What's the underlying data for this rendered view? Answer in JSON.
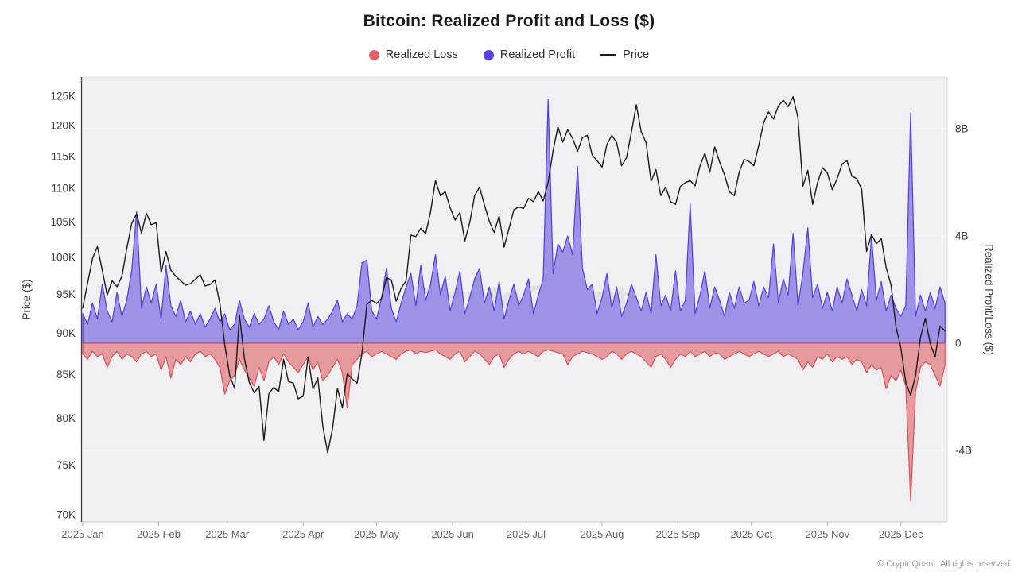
{
  "header": {
    "title": "Bitcoin: Realized Profit and Loss ($)"
  },
  "legend": [
    {
      "id": "realized-loss",
      "label": "Realized Loss",
      "marker": "circle",
      "color": "#e0606a"
    },
    {
      "id": "realized-profit",
      "label": "Realized Profit",
      "marker": "circle",
      "color": "#5742e8"
    },
    {
      "id": "price",
      "label": "Price",
      "marker": "line",
      "color": "#1f1f1f"
    }
  ],
  "watermark": "CryptoQuant",
  "footer": {
    "copyright": "© CryptoQuant. All rights reserved"
  },
  "chart_data": {
    "type": "area+line",
    "title": "Bitcoin: Realized Profit and Loss ($)",
    "plot_background": "#f0eff1",
    "gridline_color": "#fafafb",
    "grid_values_b": [
      8,
      4,
      0,
      -4
    ],
    "x_axis": {
      "year": 2025,
      "tick_labels": [
        "2025 Jan",
        "2025 Feb",
        "2025 Mar",
        "2025 Apr",
        "2025 May",
        "2025 Jun",
        "2025 Jul",
        "2025 Aug",
        "2025 Sep",
        "2025 Oct",
        "2025 Nov",
        "2025 Dec"
      ],
      "tick_days": [
        0,
        31,
        59,
        90,
        120,
        151,
        181,
        212,
        243,
        273,
        304,
        334
      ],
      "start_day": 0,
      "end_day": 352,
      "day_step": 2
    },
    "left_axis": {
      "label": "Price ($)",
      "scale": "log",
      "tick_labels": [
        "125K",
        "120K",
        "115K",
        "110K",
        "105K",
        "100K",
        "95K",
        "90K",
        "85K",
        "80K",
        "75K",
        "70K"
      ],
      "tick_values_k": [
        125,
        120,
        115,
        110,
        105,
        100,
        95,
        90,
        85,
        80,
        75,
        70
      ]
    },
    "right_axis": {
      "label": "Realized Profit/Loss ($)",
      "scale": "linear",
      "tick_labels": [
        "8B",
        "4B",
        "0",
        "-4B"
      ],
      "tick_values_b": [
        8,
        4,
        0,
        -4
      ]
    },
    "series": [
      {
        "name": "Realized Profit",
        "type": "area",
        "unit": "billion USD",
        "axis": "right",
        "color_fill": "#9c93e6",
        "color_line": "#4d3fdb",
        "values": [
          1.1,
          0.7,
          1.5,
          0.9,
          2.2,
          1.2,
          0.8,
          1.9,
          1.0,
          1.6,
          2.7,
          4.9,
          1.3,
          2.1,
          1.5,
          2.2,
          0.9,
          2.9,
          1.4,
          1.0,
          1.6,
          0.8,
          1.2,
          0.7,
          1.1,
          0.6,
          0.9,
          1.3,
          0.8,
          1.1,
          0.5,
          0.7,
          1.6,
          0.9,
          0.6,
          1.1,
          0.7,
          0.9,
          1.4,
          0.8,
          0.5,
          1.2,
          0.7,
          0.9,
          0.5,
          0.8,
          1.5,
          0.6,
          1.0,
          0.7,
          0.9,
          1.2,
          1.6,
          0.8,
          1.1,
          0.9,
          1.4,
          3.0,
          3.1,
          1.2,
          0.9,
          1.7,
          2.8,
          1.3,
          0.8,
          1.5,
          2.1,
          2.6,
          1.4,
          2.9,
          1.6,
          2.2,
          3.3,
          1.8,
          2.5,
          1.2,
          1.9,
          2.7,
          1.1,
          1.7,
          2.4,
          2.8,
          1.5,
          2.1,
          1.2,
          2.3,
          0.9,
          1.6,
          2.2,
          1.4,
          1.8,
          2.4,
          1.1,
          1.8,
          2.4,
          9.1,
          2.6,
          3.7,
          3.4,
          4.0,
          3.3,
          6.6,
          2.8,
          2.0,
          2.2,
          1.1,
          1.7,
          2.6,
          1.3,
          2.1,
          1.0,
          1.5,
          2.2,
          1.7,
          1.2,
          1.9,
          1.1,
          3.3,
          1.4,
          1.8,
          1.2,
          2.7,
          1.2,
          1.6,
          5.2,
          1.1,
          1.8,
          2.7,
          1.3,
          2.1,
          1.6,
          1.0,
          1.9,
          1.3,
          2.1,
          1.5,
          1.6,
          2.3,
          1.4,
          2.1,
          1.7,
          3.7,
          1.5,
          2.4,
          1.8,
          4.1,
          1.4,
          2.6,
          4.3,
          1.7,
          2.2,
          1.3,
          1.9,
          1.2,
          2.1,
          1.5,
          2.4,
          1.8,
          1.2,
          2.0,
          1.4,
          4.0,
          1.6,
          2.3,
          1.2,
          1.8,
          1.3,
          1.0,
          1.4,
          8.6,
          1.0,
          1.8,
          1.2,
          1.9,
          1.3,
          2.1,
          1.5
        ]
      },
      {
        "name": "Realized Loss",
        "type": "area",
        "unit": "billion USD",
        "axis": "right",
        "color_fill": "#e59a9e",
        "color_line": "#d95057",
        "values": [
          -0.4,
          -0.6,
          -0.3,
          -0.5,
          -0.4,
          -0.9,
          -0.5,
          -0.3,
          -0.6,
          -0.4,
          -0.5,
          -0.7,
          -0.4,
          -0.3,
          -0.5,
          -0.4,
          -1.0,
          -0.5,
          -1.3,
          -0.6,
          -0.8,
          -0.5,
          -0.7,
          -0.4,
          -0.3,
          -0.5,
          -0.4,
          -0.6,
          -0.9,
          -1.9,
          -1.4,
          -1.2,
          -0.6,
          -1.0,
          -1.3,
          -1.6,
          -0.9,
          -1.4,
          -0.7,
          -0.5,
          -0.8,
          -0.4,
          -0.7,
          -0.9,
          -1.1,
          -0.8,
          -0.5,
          -1.0,
          -0.7,
          -1.4,
          -1.2,
          -0.9,
          -0.6,
          -1.1,
          -2.4,
          -0.8,
          -0.6,
          -0.4,
          -0.3,
          -0.5,
          -0.4,
          -0.3,
          -0.4,
          -0.5,
          -0.6,
          -0.4,
          -0.3,
          -0.25,
          -0.4,
          -0.3,
          -0.35,
          -0.3,
          -0.25,
          -0.4,
          -0.5,
          -0.6,
          -0.4,
          -0.3,
          -0.7,
          -0.5,
          -0.3,
          -0.4,
          -0.6,
          -0.8,
          -0.5,
          -0.4,
          -0.9,
          -0.6,
          -0.4,
          -0.3,
          -0.4,
          -0.3,
          -0.4,
          -0.5,
          -0.3,
          -0.25,
          -0.3,
          -0.35,
          -0.4,
          -0.8,
          -0.5,
          -0.4,
          -0.3,
          -0.35,
          -0.4,
          -0.5,
          -0.6,
          -0.5,
          -0.3,
          -0.4,
          -0.6,
          -0.4,
          -0.3,
          -0.4,
          -0.5,
          -0.7,
          -0.9,
          -0.5,
          -0.4,
          -0.6,
          -0.9,
          -0.6,
          -0.4,
          -0.5,
          -0.3,
          -0.5,
          -0.4,
          -0.3,
          -0.5,
          -0.35,
          -0.4,
          -0.6,
          -0.5,
          -0.4,
          -0.3,
          -0.4,
          -0.5,
          -0.4,
          -0.3,
          -0.4,
          -0.5,
          -0.4,
          -0.3,
          -0.5,
          -0.4,
          -0.5,
          -0.6,
          -1.0,
          -0.7,
          -0.9,
          -0.5,
          -0.6,
          -0.4,
          -0.7,
          -0.5,
          -0.6,
          -0.5,
          -0.8,
          -0.6,
          -0.7,
          -1.1,
          -0.8,
          -1.0,
          -0.9,
          -1.7,
          -1.2,
          -1.4,
          -1.0,
          -1.6,
          -5.9,
          -1.8,
          -0.9,
          -0.7,
          -0.8,
          -1.2,
          -1.6,
          -0.8
        ]
      },
      {
        "name": "Price",
        "type": "line",
        "unit": "thousand USD",
        "axis": "left",
        "color_line": "#1a1a1a",
        "values": [
          93.2,
          96.5,
          99.8,
          101.5,
          98.2,
          94.9,
          96.8,
          96.0,
          97.4,
          101.2,
          104.8,
          106.2,
          103.4,
          106.3,
          104.6,
          104.9,
          97.9,
          100.8,
          98.2,
          97.4,
          96.8,
          96.2,
          96.4,
          97.0,
          97.6,
          96.1,
          96.3,
          96.9,
          93.8,
          88.6,
          84.9,
          83.4,
          92.3,
          86.9,
          84.1,
          82.9,
          83.6,
          77.6,
          82.8,
          83.5,
          83.0,
          86.8,
          84.2,
          84.0,
          82.2,
          82.5,
          87.1,
          83.3,
          84.6,
          79.2,
          76.3,
          78.9,
          83.4,
          81.2,
          85.1,
          84.5,
          84.0,
          87.5,
          93.7,
          94.2,
          93.8,
          94.5,
          97.2,
          96.9,
          94.1,
          95.8,
          96.8,
          103.1,
          102.9,
          104.1,
          103.3,
          106.5,
          111.2,
          108.9,
          109.5,
          107.1,
          105.3,
          106.4,
          102.3,
          104.9,
          108.9,
          110.2,
          107.5,
          105.1,
          103.5,
          105.9,
          101.4,
          104.0,
          106.8,
          107.2,
          107.0,
          108.5,
          108.0,
          109.5,
          108.1,
          110.9,
          115.9,
          119.8,
          117.3,
          119.3,
          117.9,
          115.8,
          118.0,
          118.4,
          115.2,
          114.3,
          113.3,
          116.9,
          118.4,
          117.2,
          113.5,
          114.8,
          118.9,
          123.5,
          119.0,
          117.2,
          111.1,
          112.9,
          108.9,
          110.2,
          108.0,
          107.6,
          110.3,
          110.9,
          111.2,
          110.4,
          113.5,
          115.5,
          112.5,
          116.5,
          114.1,
          112.1,
          109.5,
          108.9,
          112.5,
          114.5,
          114.2,
          113.5,
          116.8,
          120.5,
          122.3,
          121.1,
          123.3,
          124.3,
          123.2,
          124.9,
          121.3,
          110.3,
          112.8,
          107.6,
          110.9,
          113.2,
          112.4,
          109.8,
          111.5,
          113.8,
          114.3,
          111.9,
          111.5,
          109.9,
          100.8,
          103.2,
          101.9,
          102.6,
          98.6,
          96.2,
          90.8,
          88.2,
          84.1,
          82.6,
          84.9,
          89.5,
          91.9,
          88.7,
          87.1,
          90.9,
          90.3
        ]
      }
    ]
  }
}
